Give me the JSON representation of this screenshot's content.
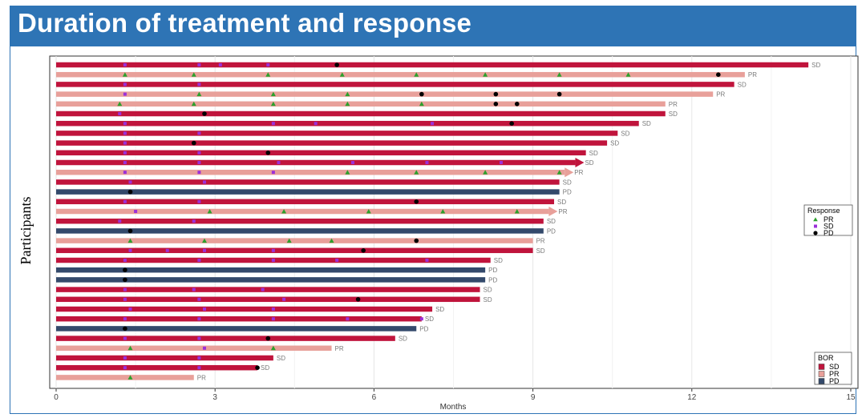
{
  "header": {
    "title": "Duration of treatment and response"
  },
  "chart_data": {
    "type": "bar",
    "orientation": "horizontal",
    "title": "Duration of treatment and response",
    "xlabel": "Months",
    "ylabel": "Participants",
    "xlim": [
      0,
      15
    ],
    "xticks": [
      0,
      3,
      6,
      9,
      12,
      15
    ],
    "grid": true,
    "legend_response": {
      "title": "Response",
      "placement": "right",
      "entries": [
        {
          "label": "PR",
          "marker": "triangle",
          "color": "#2ca02c"
        },
        {
          "label": "SD",
          "marker": "square",
          "color": "#9b30d9"
        },
        {
          "label": "PD",
          "marker": "circle",
          "color": "#000000"
        }
      ]
    },
    "legend_bor": {
      "title": "BOR",
      "placement": "bottom-right",
      "entries": [
        {
          "label": "SD",
          "color": "#c0143c"
        },
        {
          "label": "PR",
          "color": "#e8a09a"
        },
        {
          "label": "PD",
          "color": "#33496b"
        }
      ]
    },
    "bor_colors": {
      "SD": "#c0143c",
      "PR": "#e8a09a",
      "PD": "#33496b"
    },
    "participants": [
      {
        "duration": 14.2,
        "bor": "SD",
        "sd": [
          1.3,
          2.7,
          3.1,
          4.0
        ],
        "pr": [],
        "pd": [
          5.3
        ]
      },
      {
        "duration": 13.0,
        "bor": "PR",
        "sd": [],
        "pr": [
          1.3,
          2.6,
          4.0,
          5.4,
          6.8,
          8.1,
          9.5,
          10.8
        ],
        "pd": [
          12.5
        ]
      },
      {
        "duration": 12.8,
        "bor": "SD",
        "sd": [
          1.3,
          2.7
        ],
        "pr": [],
        "pd": []
      },
      {
        "duration": 12.4,
        "bor": "PR",
        "sd": [
          1.3
        ],
        "pr": [
          2.7,
          4.1,
          5.5
        ],
        "pd": [
          6.9,
          8.3,
          9.5
        ]
      },
      {
        "duration": 11.5,
        "bor": "PR",
        "sd": [],
        "pr": [
          1.2,
          2.6,
          4.1,
          5.5,
          6.9
        ],
        "pd": [
          8.3,
          8.7
        ]
      },
      {
        "duration": 11.5,
        "bor": "SD",
        "sd": [
          1.2
        ],
        "pr": [],
        "pd": [
          2.8
        ]
      },
      {
        "duration": 11.0,
        "bor": "SD",
        "sd": [
          1.3,
          4.1,
          4.9,
          7.1
        ],
        "pr": [],
        "pd": [
          8.6
        ]
      },
      {
        "duration": 10.6,
        "bor": "SD",
        "sd": [
          1.3,
          2.7
        ],
        "pr": [],
        "pd": []
      },
      {
        "duration": 10.4,
        "bor": "SD",
        "sd": [
          1.3
        ],
        "pr": [],
        "pd": [
          2.6
        ]
      },
      {
        "duration": 10.0,
        "bor": "SD",
        "sd": [
          1.3,
          2.7
        ],
        "pr": [],
        "pd": [
          4.0
        ]
      },
      {
        "duration": 9.8,
        "bor": "SD",
        "sd": [
          1.3,
          2.7,
          4.2,
          5.6,
          7.0,
          8.4
        ],
        "pr": [],
        "pd": [],
        "ongoing": true
      },
      {
        "duration": 9.6,
        "bor": "PR",
        "sd": [
          1.3,
          2.7,
          4.1
        ],
        "pr": [
          5.5,
          6.8,
          8.1,
          9.5
        ],
        "pd": [],
        "ongoing": true
      },
      {
        "duration": 9.5,
        "bor": "SD",
        "sd": [
          1.4,
          2.8
        ],
        "pr": [],
        "pd": []
      },
      {
        "duration": 9.5,
        "bor": "PD",
        "sd": [],
        "pr": [],
        "pd": [
          1.4
        ]
      },
      {
        "duration": 9.4,
        "bor": "SD",
        "sd": [
          1.3,
          2.7
        ],
        "pr": [],
        "pd": [
          6.8
        ]
      },
      {
        "duration": 9.3,
        "bor": "PR",
        "sd": [
          1.5
        ],
        "pr": [
          2.9,
          4.3,
          5.9,
          7.3,
          8.7
        ],
        "pd": [],
        "ongoing": true
      },
      {
        "duration": 9.2,
        "bor": "SD",
        "sd": [
          1.2,
          2.6
        ],
        "pr": [],
        "pd": []
      },
      {
        "duration": 9.2,
        "bor": "PD",
        "sd": [],
        "pr": [],
        "pd": [
          1.4
        ]
      },
      {
        "duration": 9.0,
        "bor": "PR",
        "sd": [],
        "pr": [
          1.4,
          2.8,
          4.4,
          5.2
        ],
        "pd": [
          6.8
        ]
      },
      {
        "duration": 9.0,
        "bor": "SD",
        "sd": [
          1.4,
          2.1,
          2.8,
          4.1
        ],
        "pr": [],
        "pd": [
          5.8
        ]
      },
      {
        "duration": 8.2,
        "bor": "SD",
        "sd": [
          1.3,
          2.7,
          4.1,
          5.3,
          7.0
        ],
        "pr": [],
        "pd": []
      },
      {
        "duration": 8.1,
        "bor": "PD",
        "sd": [],
        "pr": [],
        "pd": [
          1.3
        ]
      },
      {
        "duration": 8.1,
        "bor": "PD",
        "sd": [],
        "pr": [],
        "pd": [
          1.3
        ]
      },
      {
        "duration": 8.0,
        "bor": "SD",
        "sd": [
          1.3,
          2.6,
          3.9
        ],
        "pr": [],
        "pd": []
      },
      {
        "duration": 8.0,
        "bor": "SD",
        "sd": [
          1.3,
          2.7,
          4.3
        ],
        "pr": [],
        "pd": [
          5.7
        ]
      },
      {
        "duration": 7.1,
        "bor": "SD",
        "sd": [
          1.4,
          2.8,
          4.1
        ],
        "pr": [],
        "pd": []
      },
      {
        "duration": 6.9,
        "bor": "SD",
        "sd": [
          1.3,
          2.7,
          4.1,
          5.5,
          6.9
        ],
        "pr": [],
        "pd": []
      },
      {
        "duration": 6.8,
        "bor": "PD",
        "sd": [],
        "pr": [],
        "pd": [
          1.3
        ]
      },
      {
        "duration": 6.4,
        "bor": "SD",
        "sd": [
          1.3,
          2.7
        ],
        "pr": [],
        "pd": [
          4.0
        ]
      },
      {
        "duration": 5.2,
        "bor": "PR",
        "sd": [
          2.8
        ],
        "pr": [
          1.4,
          4.1
        ],
        "pd": []
      },
      {
        "duration": 4.1,
        "bor": "SD",
        "sd": [
          1.3,
          2.7
        ],
        "pr": [],
        "pd": []
      },
      {
        "duration": 3.8,
        "bor": "SD",
        "sd": [
          1.3,
          2.7
        ],
        "pr": [],
        "pd": [
          3.8
        ]
      },
      {
        "duration": 2.6,
        "bor": "PR",
        "sd": [],
        "pr": [
          1.4
        ],
        "pd": []
      }
    ]
  }
}
